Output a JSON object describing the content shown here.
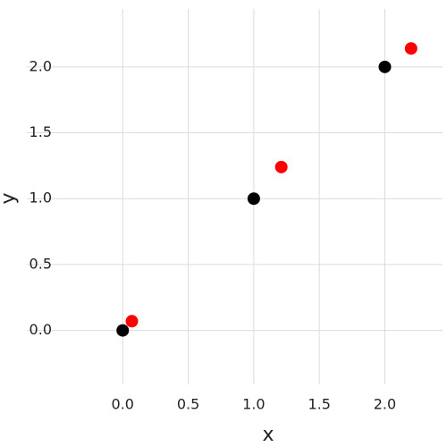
{
  "chart_data": {
    "type": "scatter",
    "x_label": "x",
    "y_label": "y",
    "xlim": [
      -0.22,
      2.44
    ],
    "ylim": [
      -0.41,
      2.44
    ],
    "xticks": [
      {
        "value": 0,
        "label": "0.0"
      },
      0.5,
      {
        "value": 1,
        "label": "1.0"
      },
      1.5,
      {
        "value": 2,
        "label": "2.0"
      }
    ],
    "yticks": [
      {
        "value": 0,
        "label": "0.0"
      },
      0.5,
      {
        "value": 1,
        "label": "1.0"
      },
      1.5,
      {
        "value": 2,
        "label": "2.0"
      }
    ],
    "grid": true,
    "series": [
      {
        "color": "#000000",
        "x": [
          0,
          1,
          2
        ],
        "values": [
          0,
          1,
          2
        ]
      },
      {
        "color": "#ff0000",
        "x": [
          0.07,
          1.21,
          2.2
        ],
        "values": [
          0.07,
          1.24,
          2.14
        ]
      }
    ]
  }
}
